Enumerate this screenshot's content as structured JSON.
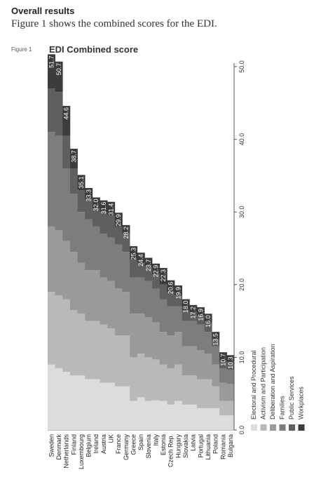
{
  "page": {
    "heading": "Overall results",
    "intro": "Figure 1 shows the combined scores for the EDI.",
    "figure_label": "Figure 1"
  },
  "chart_data": {
    "type": "bar",
    "stacked": true,
    "orientation": "vertical",
    "title": "EDI Combined score",
    "categories": [
      "Sweden",
      "Denmark",
      "Netherlands",
      "Finland",
      "Luxembourg",
      "Belgium",
      "Ireland",
      "Austria",
      "UK",
      "France",
      "Germany",
      "Greece",
      "Spain",
      "Slovenia",
      "Italy",
      "Estonia",
      "Czech Rep.",
      "Hungary",
      "Slovakia",
      "Latvia",
      "Portugal",
      "Lithuania",
      "Poland",
      "Romania",
      "Bulgaria"
    ],
    "totals": [
      51.7,
      50.7,
      44.6,
      38.7,
      35.1,
      33.3,
      32.0,
      31.6,
      31.4,
      29.9,
      28.2,
      25.3,
      24.4,
      23.7,
      22.9,
      22.3,
      20.6,
      19.9,
      18.0,
      17.2,
      16.9,
      16.0,
      13.5,
      10.7,
      10.3
    ],
    "series": [
      {
        "name": "Electoral and Procedural",
        "color": "#dcdcdc",
        "values": [
          9.0,
          8.5,
          8.0,
          7.5,
          7.5,
          7.0,
          7.0,
          6.5,
          6.5,
          6.0,
          6.0,
          4.0,
          4.5,
          4.0,
          4.0,
          4.0,
          3.5,
          4.0,
          3.5,
          3.5,
          3.0,
          3.0,
          3.0,
          2.0,
          2.0
        ]
      },
      {
        "name": "Activism and Participation",
        "color": "#b9b9b9",
        "values": [
          10.0,
          10.0,
          10.0,
          9.0,
          8.5,
          8.0,
          8.0,
          8.0,
          7.5,
          7.0,
          7.0,
          6.0,
          6.0,
          6.0,
          5.5,
          5.0,
          5.0,
          5.0,
          4.0,
          4.0,
          4.0,
          4.0,
          3.0,
          2.0,
          2.0
        ]
      },
      {
        "name": "Deliberation and Aspiration",
        "color": "#9a9a9a",
        "values": [
          9.0,
          9.0,
          8.0,
          8.0,
          7.0,
          7.0,
          7.0,
          6.5,
          6.5,
          6.5,
          6.0,
          6.0,
          5.5,
          5.5,
          5.0,
          4.5,
          4.5,
          4.5,
          4.0,
          4.0,
          4.0,
          3.5,
          3.0,
          2.5,
          2.3
        ]
      },
      {
        "name": "Families",
        "color": "#7d7d7d",
        "values": [
          13.0,
          13.0,
          10.0,
          8.0,
          7.0,
          7.0,
          6.0,
          6.0,
          6.0,
          6.0,
          5.5,
          5.0,
          5.0,
          5.0,
          4.5,
          4.5,
          4.0,
          3.5,
          3.5,
          3.5,
          3.5,
          3.0,
          2.5,
          2.0,
          2.0
        ]
      },
      {
        "name": "Public Services",
        "color": "#5f5f5f",
        "values": [
          6.0,
          6.0,
          4.5,
          3.5,
          3.0,
          2.8,
          2.5,
          3.0,
          3.0,
          2.5,
          2.5,
          2.5,
          2.0,
          2.0,
          2.0,
          2.0,
          2.0,
          1.5,
          1.5,
          1.2,
          1.2,
          1.2,
          1.0,
          1.0,
          1.0
        ]
      },
      {
        "name": "Workplaces",
        "color": "#3c3c3c",
        "values": [
          4.7,
          4.2,
          4.1,
          2.7,
          2.1,
          1.5,
          1.5,
          1.6,
          1.9,
          1.9,
          1.2,
          1.8,
          1.4,
          1.2,
          1.4,
          2.3,
          1.6,
          1.4,
          1.5,
          1.0,
          1.2,
          1.3,
          1.0,
          1.2,
          1.0
        ]
      }
    ],
    "ylim": [
      0,
      55
    ],
    "yticks": [
      "0.0",
      "10.0",
      "20.0",
      "30.0",
      "40.0",
      "50.0"
    ],
    "ytick_values": [
      0,
      10,
      20,
      30,
      40,
      50
    ],
    "axis_side": "right",
    "legend_position": "bottom-right",
    "grid": false
  }
}
